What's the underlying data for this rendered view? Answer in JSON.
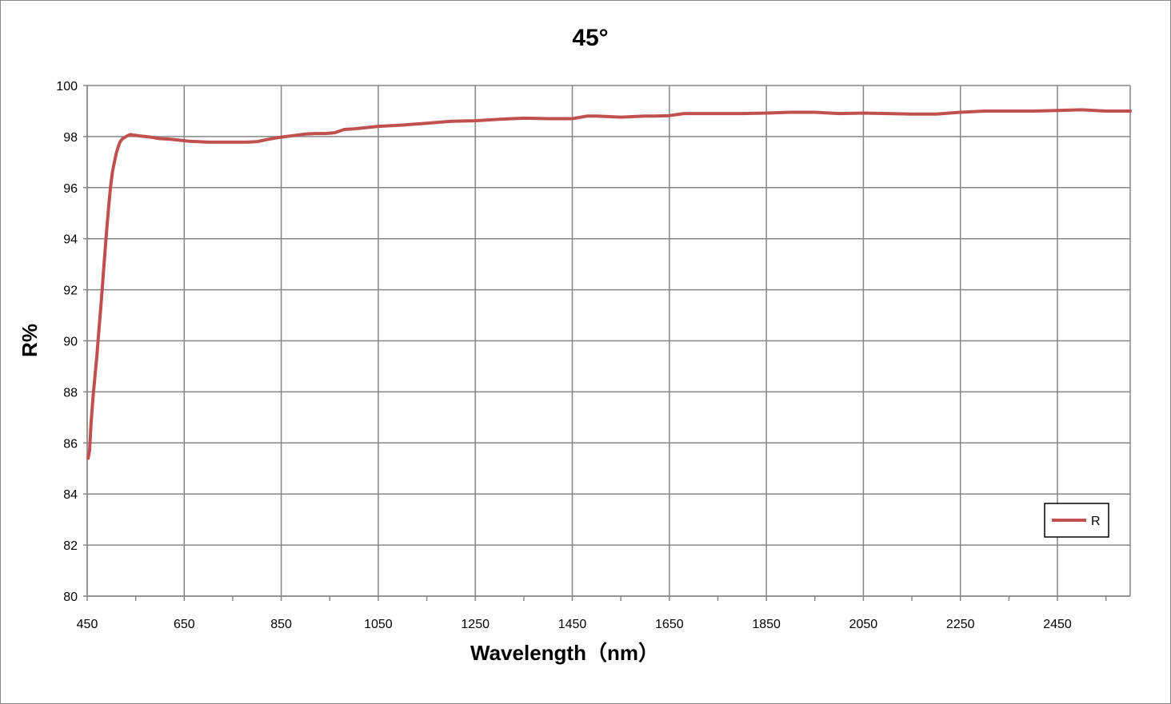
{
  "chart_data": {
    "type": "line",
    "title": "45°",
    "xlabel": "Wavelength（nm）",
    "ylabel": "R%",
    "xlim": [
      450,
      2600
    ],
    "ylim": [
      80,
      100
    ],
    "x_ticks": [
      450,
      650,
      850,
      1050,
      1250,
      1450,
      1650,
      1850,
      2050,
      2250,
      2450
    ],
    "y_ticks": [
      80,
      82,
      84,
      86,
      88,
      90,
      92,
      94,
      96,
      98,
      100
    ],
    "grid": true,
    "legend_position": "bottom-right",
    "colors": {
      "line": "#c0504d",
      "grid": "#868686",
      "axis": "#868686"
    },
    "series": [
      {
        "name": "R",
        "x": [
          452,
          455,
          458,
          462,
          466,
          470,
          474,
          478,
          482,
          486,
          490,
          494,
          498,
          502,
          506,
          510,
          514,
          518,
          522,
          526,
          530,
          535,
          540,
          545,
          550,
          560,
          570,
          580,
          590,
          600,
          620,
          640,
          660,
          680,
          700,
          720,
          740,
          760,
          780,
          800,
          820,
          840,
          860,
          880,
          900,
          920,
          940,
          960,
          980,
          1000,
          1050,
          1100,
          1150,
          1200,
          1250,
          1300,
          1350,
          1400,
          1450,
          1480,
          1500,
          1550,
          1600,
          1620,
          1650,
          1680,
          1700,
          1750,
          1800,
          1850,
          1900,
          1950,
          2000,
          2050,
          2100,
          2150,
          2200,
          2250,
          2300,
          2350,
          2400,
          2450,
          2500,
          2550,
          2600
        ],
        "values": [
          85.4,
          85.7,
          86.8,
          87.8,
          88.6,
          89.4,
          90.4,
          91.3,
          92.3,
          93.3,
          94.3,
          95.2,
          96.0,
          96.6,
          97.0,
          97.35,
          97.6,
          97.8,
          97.9,
          97.95,
          98.0,
          98.05,
          98.08,
          98.05,
          98.05,
          98.02,
          98.0,
          97.98,
          97.95,
          97.92,
          97.9,
          97.86,
          97.82,
          97.8,
          97.78,
          97.78,
          97.78,
          97.78,
          97.78,
          97.8,
          97.88,
          97.95,
          98.0,
          98.05,
          98.1,
          98.12,
          98.12,
          98.15,
          98.28,
          98.3,
          98.4,
          98.45,
          98.52,
          98.6,
          98.62,
          98.68,
          98.72,
          98.7,
          98.7,
          98.8,
          98.8,
          98.76,
          98.8,
          98.8,
          98.82,
          98.9,
          98.9,
          98.9,
          98.9,
          98.92,
          98.95,
          98.95,
          98.9,
          98.92,
          98.9,
          98.88,
          98.88,
          98.95,
          99.0,
          99.0,
          99.0,
          99.02,
          99.05,
          99.0,
          99.0
        ]
      }
    ]
  }
}
